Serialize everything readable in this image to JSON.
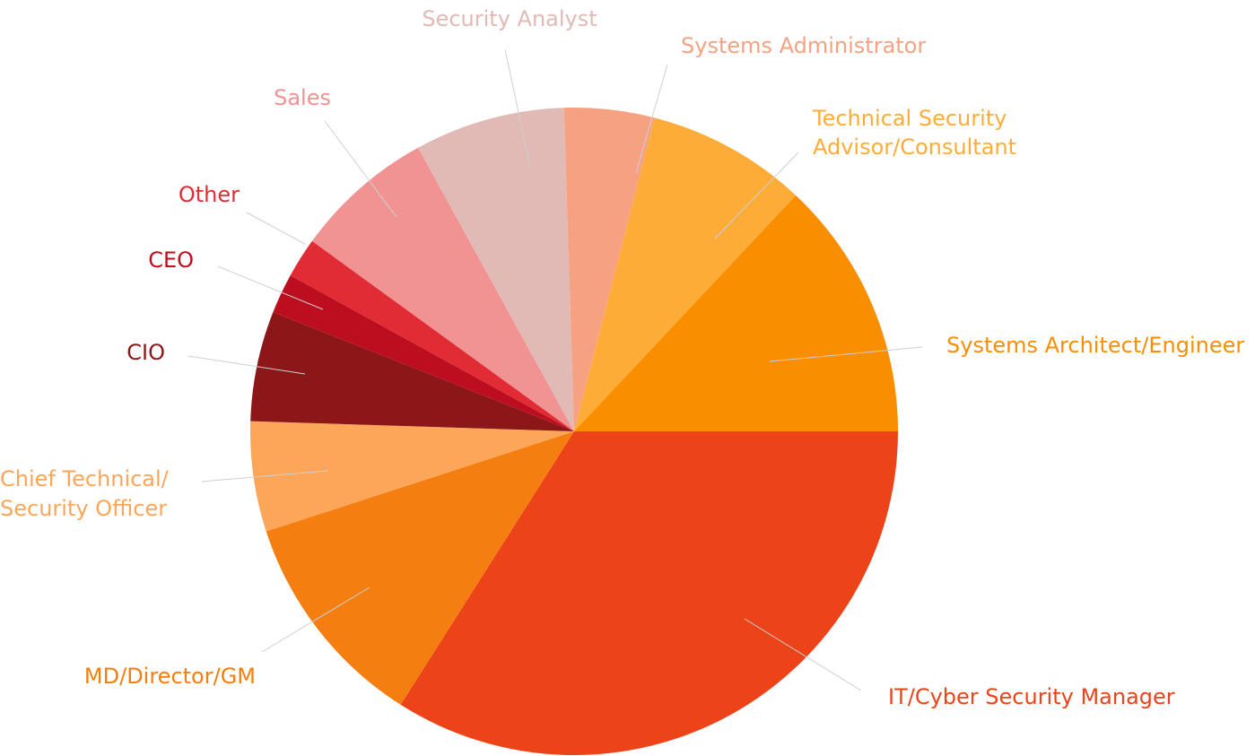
{
  "chart_data": {
    "type": "pie",
    "title": "",
    "slices": [
      {
        "label": [
          "IT/Cyber Security Manager"
        ],
        "value": 34.0,
        "color": "#EC4319"
      },
      {
        "label": [
          "MD/Director/GM"
        ],
        "value": 11.0,
        "color": "#F47E0F"
      },
      {
        "label": [
          "Chief Technical/",
          "Security Officer"
        ],
        "value": 5.5,
        "color": "#FCA65A"
      },
      {
        "label": [
          "CIO"
        ],
        "value": 5.5,
        "color": "#8B1719"
      },
      {
        "label": [
          "CEO"
        ],
        "value": 2.0,
        "color": "#BC0E1E"
      },
      {
        "label": [
          "Other"
        ],
        "value": 2.0,
        "color": "#E22C35"
      },
      {
        "label": [
          "Sales"
        ],
        "value": 7.0,
        "color": "#F29393"
      },
      {
        "label": [
          "Security Analyst"
        ],
        "value": 7.5,
        "color": "#E1BAB6"
      },
      {
        "label": [
          "Systems Administrator"
        ],
        "value": 4.5,
        "color": "#F6A282"
      },
      {
        "label": [
          "Technical Security",
          "Advisor/Consultant"
        ],
        "value": 8.0,
        "color": "#FDAD37"
      },
      {
        "label": [
          "Systems Architect/Engineer"
        ],
        "value": 13.0,
        "color": "#FA8E01"
      }
    ],
    "start_angle_deg": 0,
    "direction": "clockwise",
    "legend": "none",
    "labels": "outside-with-leader-lines"
  }
}
